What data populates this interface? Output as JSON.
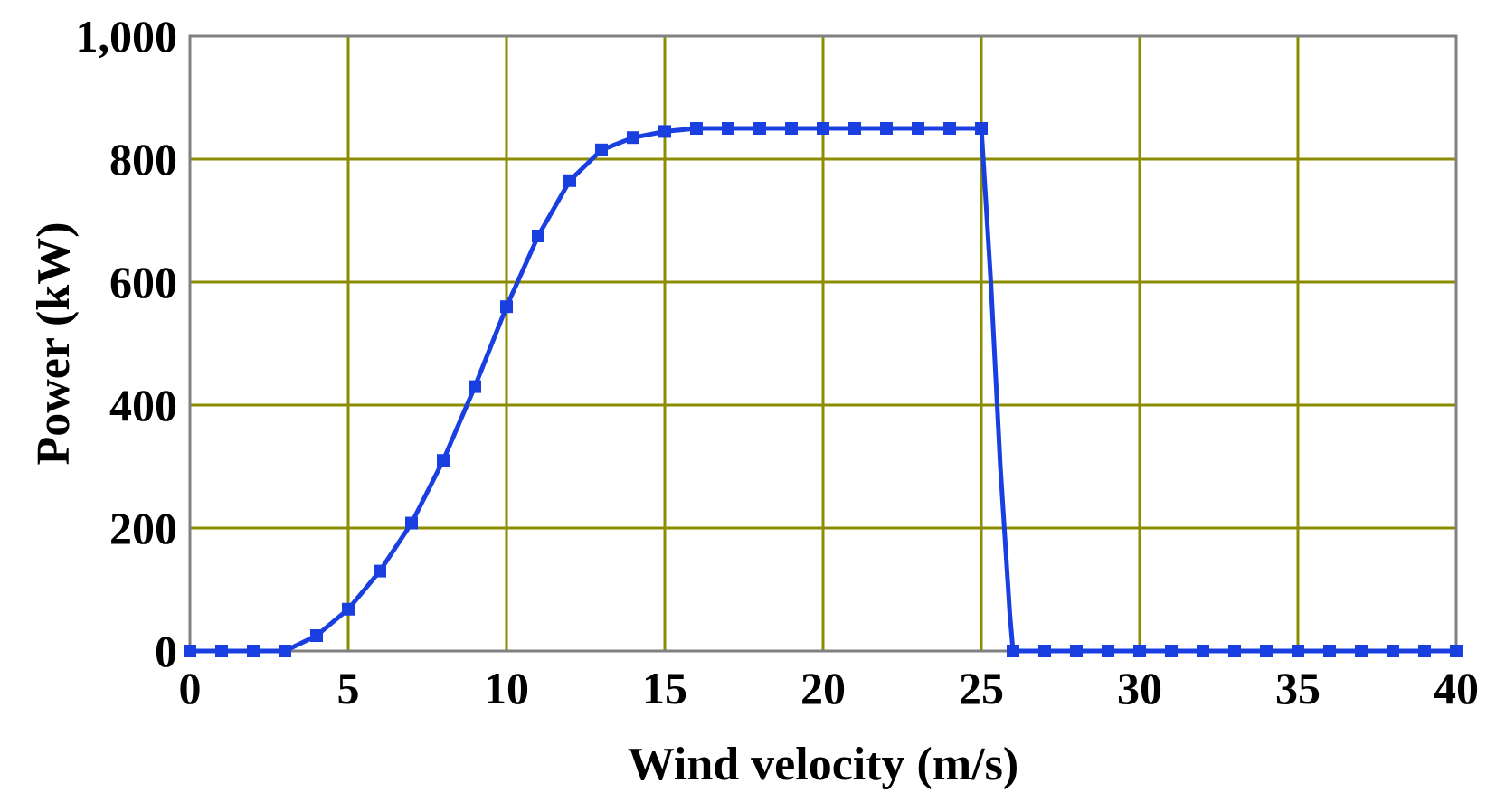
{
  "chart_data": {
    "type": "line",
    "title": "",
    "xlabel": "Wind velocity (m/s)",
    "ylabel": "Power (kW)",
    "xlim": [
      0,
      40
    ],
    "ylim": [
      0,
      1000
    ],
    "xticks": [
      0,
      5,
      10,
      15,
      20,
      25,
      30,
      35,
      40
    ],
    "xtick_labels": [
      "0",
      "5",
      "10",
      "15",
      "20",
      "25",
      "30",
      "35",
      "40"
    ],
    "yticks": [
      0,
      200,
      400,
      600,
      800,
      1000
    ],
    "ytick_labels": [
      "0",
      "200",
      "400",
      "600",
      "800",
      "1,000"
    ],
    "grid": true,
    "legend": "none",
    "colors": {
      "series": "#1a3fe0",
      "grid": "#8c8c00",
      "frame": "#808080"
    },
    "series": [
      {
        "x": [
          0,
          1,
          2,
          3,
          4,
          5,
          6,
          7,
          8,
          9,
          10,
          11,
          12,
          13,
          14,
          15,
          16,
          17,
          18,
          19,
          20,
          21,
          22,
          23,
          24,
          25,
          25.3,
          25.6,
          25.9,
          26,
          27,
          28,
          29,
          30,
          31,
          32,
          33,
          34,
          35,
          36,
          37,
          38,
          39,
          40
        ],
        "y": [
          0,
          0,
          0,
          0,
          25,
          68,
          130,
          208,
          310,
          430,
          560,
          675,
          765,
          815,
          835,
          845,
          850,
          850,
          850,
          850,
          850,
          850,
          850,
          850,
          850,
          850,
          600,
          300,
          60,
          0,
          0,
          0,
          0,
          0,
          0,
          0,
          0,
          0,
          0,
          0,
          0,
          0,
          0,
          0
        ],
        "markers": [
          0,
          1,
          2,
          3,
          4,
          5,
          6,
          7,
          8,
          9,
          10,
          11,
          12,
          13,
          14,
          15,
          16,
          17,
          18,
          19,
          20,
          21,
          22,
          23,
          24,
          25,
          26,
          27,
          28,
          29,
          30,
          31,
          32,
          33,
          34,
          35,
          36,
          37,
          38,
          39,
          40
        ]
      }
    ]
  }
}
